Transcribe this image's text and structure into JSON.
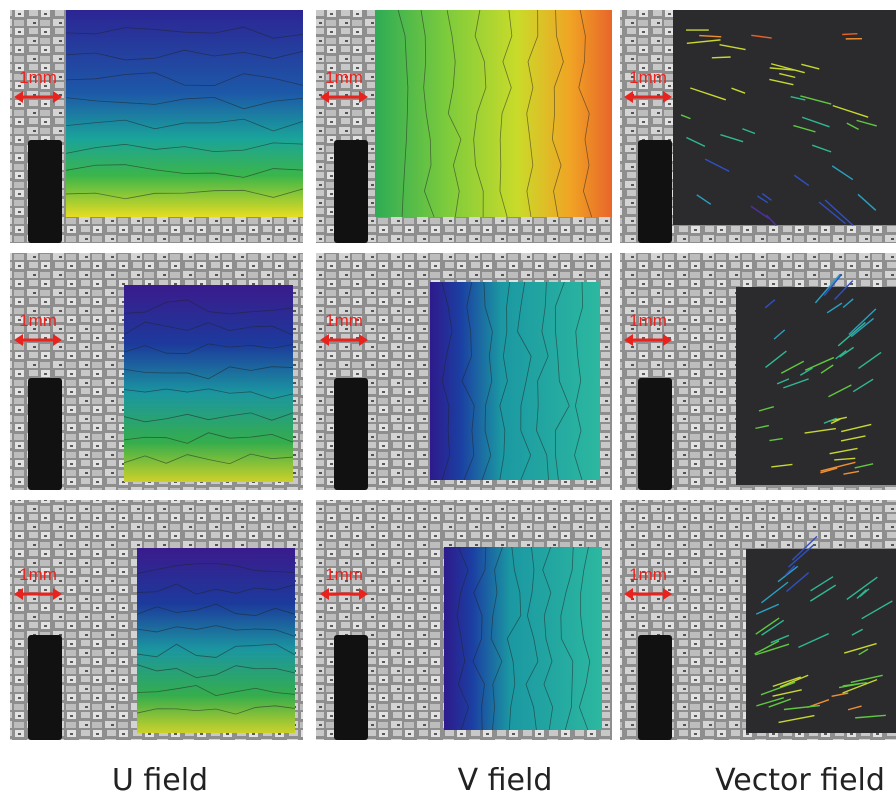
{
  "rows": [
    [
      {
        "scale_label": "1mm"
      },
      {
        "scale_label": "1mm"
      },
      {
        "scale_label": "1mm"
      }
    ],
    [
      {
        "scale_label": "1mm"
      },
      {
        "scale_label": "1mm"
      },
      {
        "scale_label": "1mm"
      }
    ],
    [
      {
        "scale_label": "1mm"
      },
      {
        "scale_label": "1mm"
      },
      {
        "scale_label": "1mm"
      }
    ]
  ],
  "column_labels": [
    "U field",
    "V field",
    "Vector field"
  ]
}
